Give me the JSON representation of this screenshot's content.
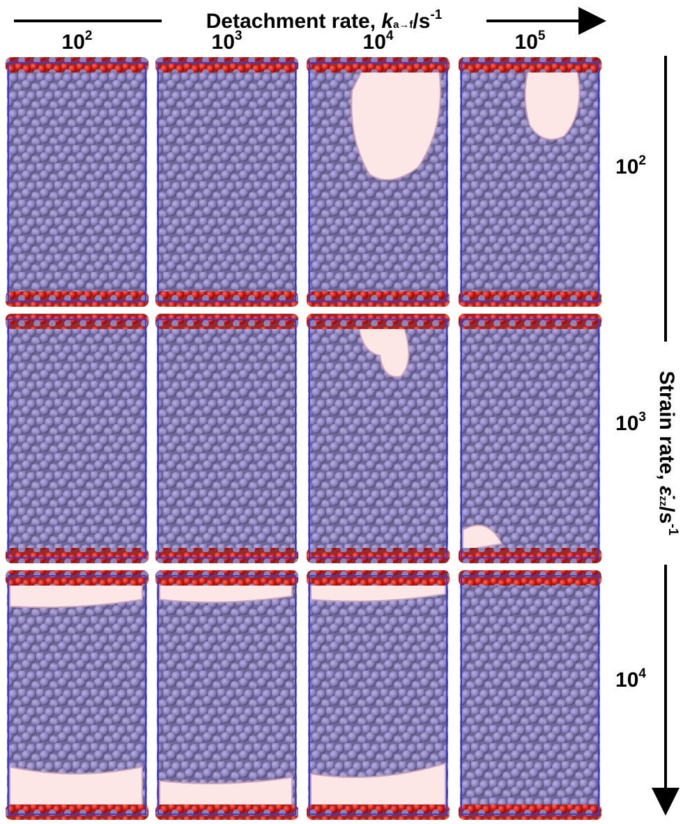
{
  "header": {
    "title": {
      "text": "Detachment rate, ",
      "symbol": "k",
      "subscript": "a→f",
      "unit": "/s",
      "superscript": "-1"
    }
  },
  "columns": [
    {
      "base": "10",
      "exp": "2"
    },
    {
      "base": "10",
      "exp": "3"
    },
    {
      "base": "10",
      "exp": "4"
    },
    {
      "base": "10",
      "exp": "5"
    }
  ],
  "side": {
    "title": {
      "text": "Strain rate, ",
      "symbol": "ε̇",
      "subscript": "zz",
      "unit": "/s",
      "superscript": "-1"
    }
  },
  "rows": [
    {
      "base": "10",
      "exp": "2"
    },
    {
      "base": "10",
      "exp": "3"
    },
    {
      "base": "10",
      "exp": "4"
    }
  ]
}
